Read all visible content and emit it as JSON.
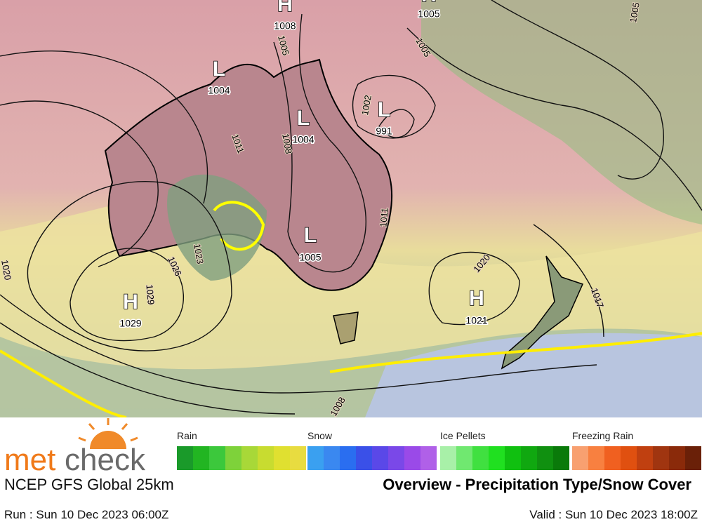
{
  "map": {
    "pressure_centers": [
      {
        "symbol": "H",
        "value": "1008"
      },
      {
        "symbol": "H",
        "value": "1005"
      },
      {
        "symbol": "L",
        "value": "1004"
      },
      {
        "symbol": "L",
        "value": "1004"
      },
      {
        "symbol": "L",
        "value": "991"
      },
      {
        "symbol": "L",
        "value": "1005"
      },
      {
        "symbol": "H",
        "value": "1029"
      },
      {
        "symbol": "H",
        "value": "1021"
      }
    ],
    "isobar_labels": [
      "1005",
      "1005",
      "1005",
      "1011",
      "1008",
      "1002",
      "1011",
      "1020",
      "1026",
      "1023",
      "1029",
      "1020",
      "1017",
      "1008"
    ]
  },
  "legend": [
    {
      "label": "Rain",
      "colors": [
        "#1a9a2a",
        "#22b522",
        "#3cc83c",
        "#7ed23a",
        "#a8d838",
        "#c8dc30",
        "#e0e030",
        "#e8dc40"
      ]
    },
    {
      "label": "Snow",
      "colors": [
        "#3aa0f0",
        "#3a88f0",
        "#2a6ef0",
        "#3a50e8",
        "#5a48e8",
        "#7a48e8",
        "#9a4ae8",
        "#b060e8"
      ]
    },
    {
      "label": "Ice Pellets",
      "colors": [
        "#a8f0a8",
        "#70e870",
        "#40e040",
        "#20e020",
        "#10c010",
        "#10a810",
        "#109010",
        "#0a7a0a"
      ]
    },
    {
      "label": "Freezing Rain",
      "colors": [
        "#f8a070",
        "#f88040",
        "#f06020",
        "#e05010",
        "#c04010",
        "#a03510",
        "#8a2a0a",
        "#6a2008"
      ]
    }
  ],
  "footer": {
    "logo": {
      "met": "met",
      "check": "check"
    },
    "model": "NCEP GFS Global 25km",
    "title": "Overview - Precipitation Type/Snow Cover",
    "run": "Run : Sun 10 Dec 2023 06:00Z",
    "valid": "Valid : Sun 10 Dec 2023 18:00Z"
  }
}
